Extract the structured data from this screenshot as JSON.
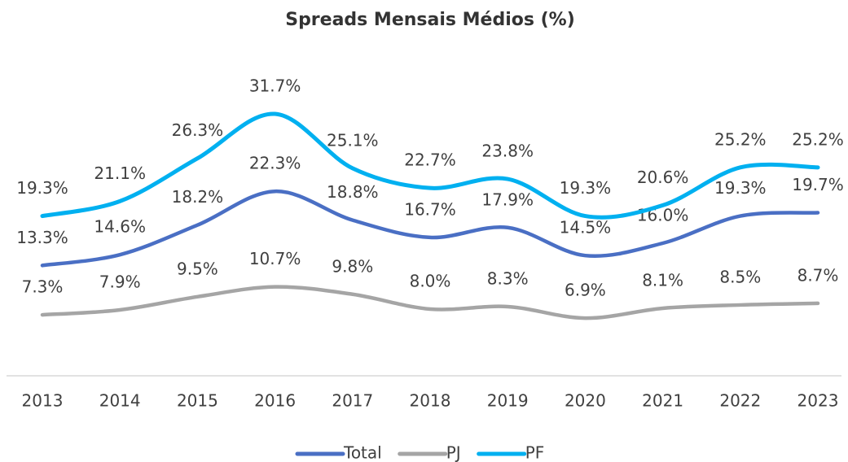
{
  "chart_data": {
    "type": "line",
    "title": "Spreads Mensais Médios (%)",
    "categories": [
      "2013",
      "2014",
      "2015",
      "2016",
      "2017",
      "2018",
      "2019",
      "2020",
      "2021",
      "2022",
      "2023"
    ],
    "series": [
      {
        "name": "Total",
        "color": "#4a6fc4",
        "values": [
          13.3,
          14.6,
          18.2,
          22.3,
          18.8,
          16.7,
          17.9,
          14.5,
          16.0,
          19.3,
          19.7
        ],
        "value_labels": [
          "13.3%",
          "14.6%",
          "18.2%",
          "22.3%",
          "18.8%",
          "16.7%",
          "17.9%",
          "14.5%",
          "16.0%",
          "19.3%",
          "19.7%"
        ]
      },
      {
        "name": "PJ",
        "color": "#a5a5a5",
        "values": [
          7.3,
          7.9,
          9.5,
          10.7,
          9.8,
          8.0,
          8.3,
          6.9,
          8.1,
          8.5,
          8.7
        ],
        "value_labels": [
          "7.3%",
          "7.9%",
          "9.5%",
          "10.7%",
          "9.8%",
          "8.0%",
          "8.3%",
          "6.9%",
          "8.1%",
          "8.5%",
          "8.7%"
        ]
      },
      {
        "name": "PF",
        "color": "#00b0f0",
        "values": [
          19.3,
          21.1,
          26.3,
          31.7,
          25.1,
          22.7,
          23.8,
          19.3,
          20.6,
          25.2,
          25.2
        ],
        "value_labels": [
          "19.3%",
          "21.1%",
          "26.3%",
          "31.7%",
          "25.1%",
          "22.7%",
          "23.8%",
          "19.3%",
          "20.6%",
          "25.2%",
          "25.2%"
        ]
      }
    ],
    "ylim": [
      0,
      40
    ],
    "legend": "bottom"
  }
}
